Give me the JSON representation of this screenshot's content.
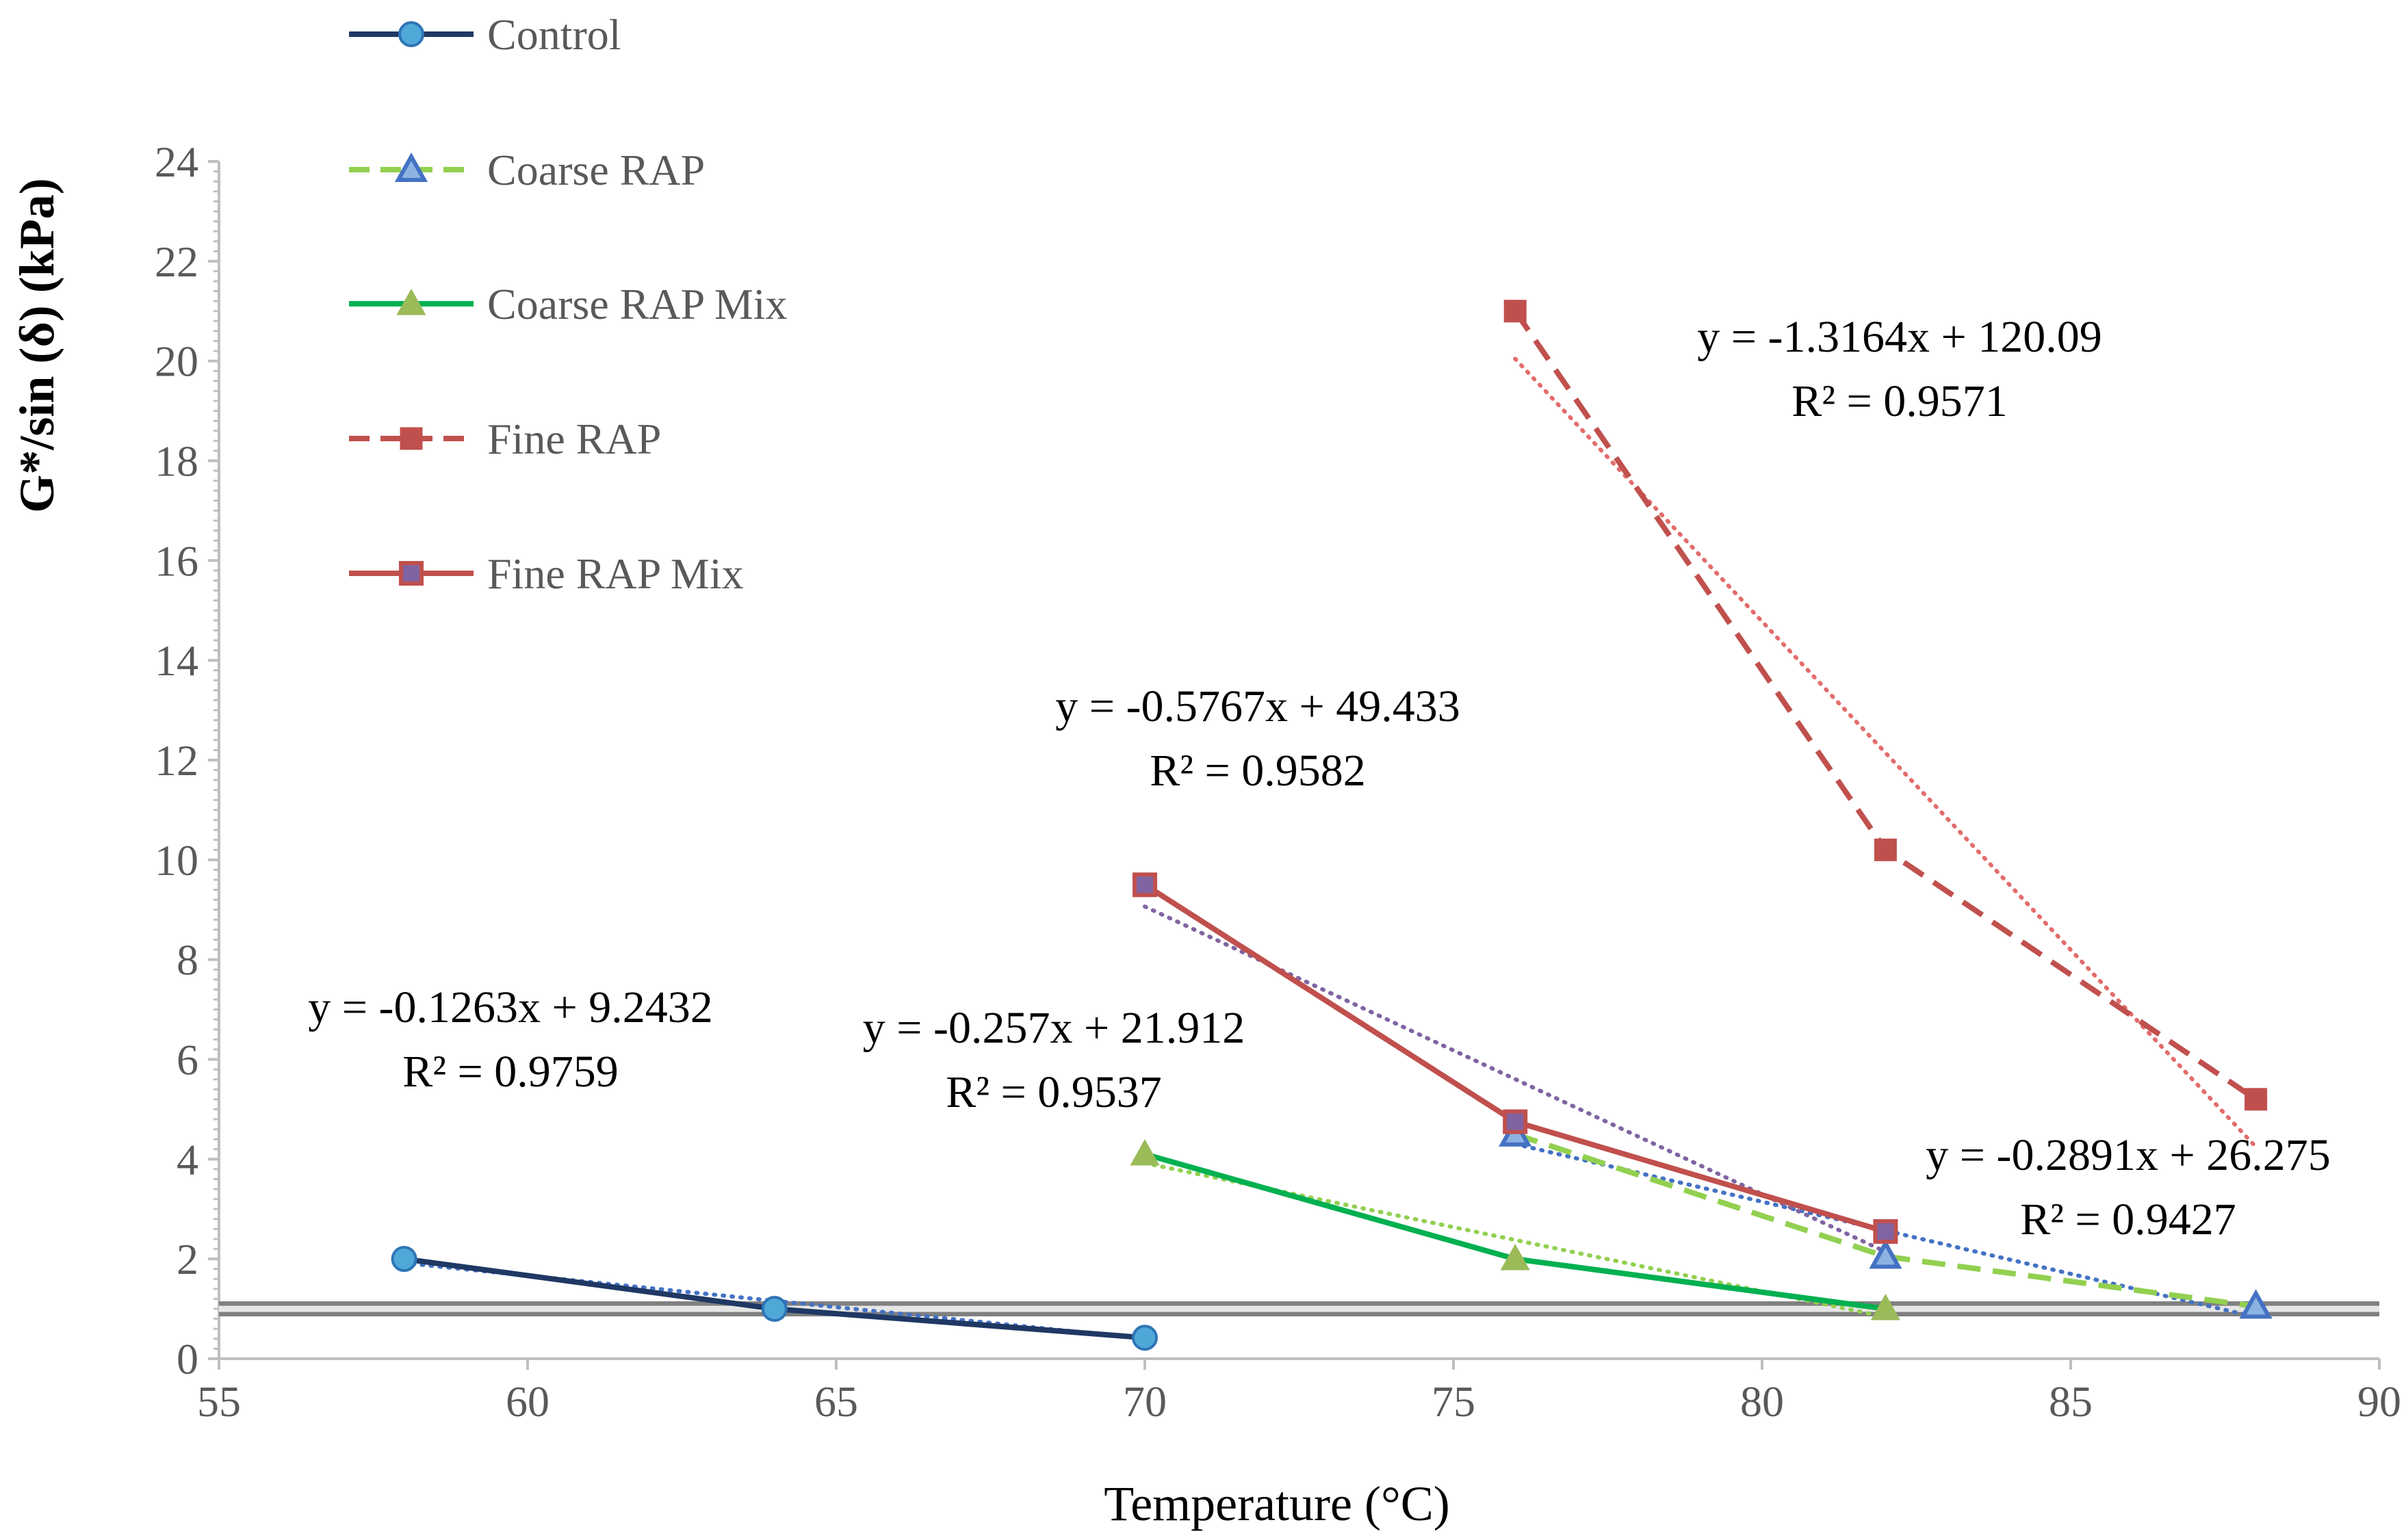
{
  "chart_data": {
    "type": "line",
    "title": "",
    "xlabel": "Temperature (°C)",
    "ylabel": "G*/sin (δ)  (kPa)",
    "xlim": [
      55,
      90
    ],
    "ylim": [
      0,
      24
    ],
    "xticks": [
      55,
      60,
      65,
      70,
      75,
      80,
      85,
      90
    ],
    "yticks": [
      0,
      2,
      4,
      6,
      8,
      10,
      12,
      14,
      16,
      18,
      20,
      22,
      24
    ],
    "reference_line": {
      "y": 1,
      "color": "#7f7f7f"
    },
    "legend_position": "top-left",
    "series": [
      {
        "name": "Control",
        "line": "solid",
        "color": "#1f3864",
        "marker": "circle",
        "marker_fill": "#4fa8d8",
        "marker_stroke": "#2e75b6",
        "x": [
          58,
          64,
          70
        ],
        "y": [
          2.0,
          1.0,
          0.42
        ],
        "trend": {
          "color": "#4472c4",
          "slope": -0.1263,
          "intercept": 9.2432,
          "x_range": [
            58,
            70
          ]
        }
      },
      {
        "name": "Coarse RAP",
        "line": "dashed",
        "color": "#92d050",
        "marker": "triangle-open",
        "marker_fill": "#8db3e2",
        "marker_stroke": "#4472c4",
        "x": [
          76,
          82,
          88
        ],
        "y": [
          4.5,
          2.05,
          1.05
        ],
        "trend": {
          "color": "#4472c4",
          "slope": -0.2891,
          "intercept": 26.275,
          "x_range": [
            76,
            88
          ]
        }
      },
      {
        "name": "Coarse RAP Mix",
        "line": "solid",
        "color": "#00b050",
        "marker": "triangle",
        "marker_fill": "#9bbb59",
        "marker_stroke": "#9bbb59",
        "x": [
          70,
          76,
          82
        ],
        "y": [
          4.1,
          2.0,
          1.0
        ],
        "trend": {
          "color": "#92d050",
          "slope": -0.257,
          "intercept": 21.912,
          "x_range": [
            70,
            82
          ]
        }
      },
      {
        "name": "Fine RAP",
        "line": "dashed",
        "color": "#c0504d",
        "marker": "square",
        "marker_fill": "#c0504d",
        "marker_stroke": "#c0504d",
        "x": [
          76,
          82,
          88
        ],
        "y": [
          21.0,
          10.2,
          5.2
        ],
        "trend": {
          "color": "#e46c6c",
          "slope": -1.3164,
          "intercept": 120.09,
          "x_range": [
            76,
            88
          ]
        }
      },
      {
        "name": "Fine RAP Mix",
        "line": "solid",
        "color": "#c0504d",
        "marker": "square-open",
        "marker_fill": "#8064a2",
        "marker_stroke": "#c0504d",
        "x": [
          70,
          76,
          82
        ],
        "y": [
          9.5,
          4.75,
          2.55
        ],
        "trend": {
          "color": "#8064a2",
          "slope": -0.5767,
          "intercept": 49.433,
          "x_range": [
            70,
            82
          ]
        }
      }
    ],
    "annotations": [
      {
        "id": "eq-control",
        "eq": "y = -0.1263x + 9.2432",
        "r2": "R² = 0.9759"
      },
      {
        "id": "eq-coarse-rap-mix",
        "eq": "y = -0.257x + 21.912",
        "r2": "R² = 0.9537"
      },
      {
        "id": "eq-fine-rap-mix",
        "eq": "y = -0.5767x + 49.433",
        "r2": "R² = 0.9582"
      },
      {
        "id": "eq-fine-rap",
        "eq": "y = -1.3164x + 120.09",
        "r2": "R² = 0.9571"
      },
      {
        "id": "eq-coarse-rap",
        "eq": "y = -0.2891x + 26.275",
        "r2": "R² = 0.9427"
      }
    ]
  }
}
